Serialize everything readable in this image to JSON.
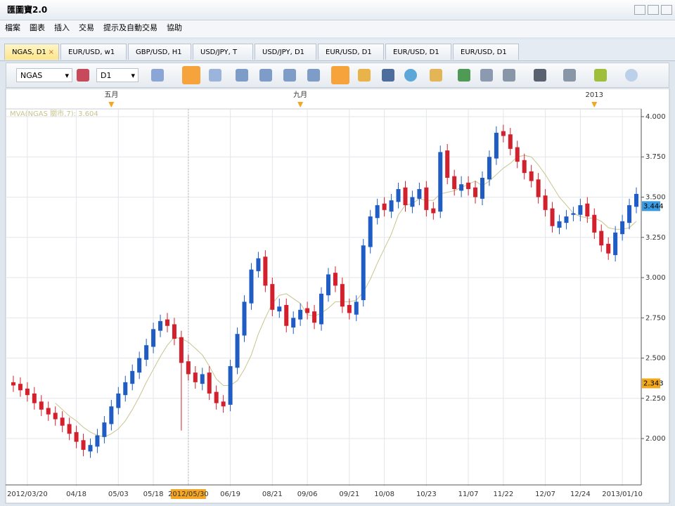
{
  "window": {
    "title": "匯圖寶2.0"
  },
  "menu": [
    "檔案",
    "圖表",
    "插入",
    "交易",
    "提示及自動交易",
    "協助"
  ],
  "tabs": [
    "NGAS, D1",
    "EUR/USD, w1",
    "GBP/USD, H1",
    "USD/JPY, T",
    "USD/JPY, D1",
    "EUR/USD, D1",
    "EUR/USD, D1",
    "EUR/USD, D1"
  ],
  "toolbar": {
    "symbol": "NGAS",
    "timeframe": "D1"
  },
  "chart_data": {
    "type": "candlestick",
    "indicator_label": "MVA(NGAS 關市,7): 3.604",
    "month_markers": [
      {
        "label": "五月",
        "index": 14
      },
      {
        "label": "九月",
        "index": 41
      },
      {
        "label": "2013",
        "index": 83
      }
    ],
    "highlighted": "2012/05/30",
    "categories": [
      null,
      null,
      "2012/03/20",
      null,
      null,
      null,
      null,
      null,
      null,
      "04/18",
      null,
      null,
      null,
      null,
      null,
      "05/03",
      null,
      null,
      null,
      null,
      "05/18",
      null,
      null,
      null,
      null,
      "2012/05/30",
      null,
      null,
      null,
      null,
      null,
      "06/19",
      null,
      null,
      null,
      null,
      null,
      "08/21",
      null,
      null,
      null,
      null,
      "09/06",
      null,
      null,
      null,
      null,
      null,
      "09/21",
      null,
      null,
      null,
      null,
      "10/08",
      null,
      null,
      null,
      null,
      null,
      "10/23",
      null,
      null,
      null,
      null,
      null,
      "11/07",
      null,
      null,
      null,
      null,
      "11/22",
      null,
      null,
      null,
      null,
      null,
      "12/07",
      null,
      null,
      null,
      null,
      "12/24",
      null,
      null,
      null,
      null,
      null,
      "2013/01/10",
      null,
      null
    ],
    "open": [
      2.35,
      2.34,
      2.31,
      2.28,
      2.23,
      2.19,
      2.16,
      2.13,
      2.09,
      2.04,
      1.99,
      1.92,
      1.95,
      2.01,
      2.09,
      2.19,
      2.27,
      2.34,
      2.41,
      2.49,
      2.57,
      2.67,
      2.74,
      2.71,
      2.63,
      2.48,
      2.41,
      2.34,
      2.41,
      2.29,
      2.23,
      2.21,
      2.44,
      2.64,
      2.84,
      3.04,
      3.13,
      2.96,
      2.79,
      2.83,
      2.69,
      2.74,
      2.81,
      2.79,
      2.71,
      2.89,
      3.03,
      2.96,
      2.83,
      2.77,
      2.86,
      3.19,
      3.37,
      3.46,
      3.41,
      3.47,
      3.56,
      3.44,
      3.49,
      3.56,
      3.43,
      3.41,
      3.79,
      3.63,
      3.54,
      3.59,
      3.56,
      3.49,
      3.61,
      3.74,
      3.91,
      3.89,
      3.81,
      3.73,
      3.66,
      3.61,
      3.51,
      3.43,
      3.31,
      3.34,
      3.39,
      3.39,
      3.46,
      3.39,
      3.29,
      3.21,
      3.14,
      3.27,
      3.34,
      3.44
    ],
    "high": [
      2.39,
      2.38,
      2.35,
      2.32,
      2.27,
      2.23,
      2.2,
      2.17,
      2.13,
      2.08,
      2.03,
      2.0,
      2.06,
      2.14,
      2.24,
      2.32,
      2.39,
      2.46,
      2.54,
      2.62,
      2.72,
      2.77,
      2.78,
      2.75,
      2.67,
      2.52,
      2.45,
      2.44,
      2.45,
      2.33,
      2.27,
      2.49,
      2.69,
      2.89,
      3.09,
      3.16,
      3.17,
      3.0,
      2.87,
      2.87,
      2.79,
      2.84,
      2.85,
      2.83,
      2.94,
      3.06,
      3.07,
      3.0,
      2.87,
      2.89,
      3.24,
      3.42,
      3.49,
      3.5,
      3.52,
      3.59,
      3.6,
      3.54,
      3.59,
      3.6,
      3.47,
      3.82,
      3.83,
      3.67,
      3.63,
      3.63,
      3.6,
      3.66,
      3.79,
      3.94,
      3.95,
      3.93,
      3.85,
      3.77,
      3.7,
      3.65,
      3.55,
      3.47,
      3.39,
      3.42,
      3.44,
      3.49,
      3.5,
      3.43,
      3.33,
      3.25,
      3.32,
      3.39,
      3.49,
      3.56
    ],
    "low": [
      2.29,
      2.26,
      2.23,
      2.18,
      2.14,
      2.11,
      2.08,
      2.04,
      1.99,
      1.94,
      1.89,
      1.88,
      1.91,
      1.97,
      2.05,
      2.15,
      2.23,
      2.3,
      2.37,
      2.45,
      2.53,
      2.63,
      2.66,
      2.58,
      2.05,
      2.36,
      2.31,
      2.3,
      2.24,
      2.18,
      2.16,
      2.17,
      2.4,
      2.6,
      2.8,
      3.0,
      2.91,
      2.76,
      2.75,
      2.66,
      2.65,
      2.7,
      2.74,
      2.68,
      2.67,
      2.85,
      2.91,
      2.78,
      2.74,
      2.73,
      2.82,
      3.15,
      3.33,
      3.38,
      3.37,
      3.43,
      3.41,
      3.4,
      3.45,
      3.38,
      3.36,
      3.37,
      3.58,
      3.51,
      3.5,
      3.51,
      3.46,
      3.45,
      3.57,
      3.7,
      3.84,
      3.76,
      3.68,
      3.61,
      3.56,
      3.46,
      3.38,
      3.28,
      3.27,
      3.3,
      3.35,
      3.35,
      3.34,
      3.24,
      3.16,
      3.11,
      3.1,
      3.23,
      3.3,
      3.4
    ],
    "close": [
      2.33,
      2.3,
      2.27,
      2.22,
      2.18,
      2.15,
      2.12,
      2.08,
      2.03,
      1.98,
      1.93,
      1.96,
      2.02,
      2.1,
      2.2,
      2.28,
      2.35,
      2.42,
      2.5,
      2.58,
      2.68,
      2.73,
      2.7,
      2.62,
      2.47,
      2.4,
      2.35,
      2.4,
      2.28,
      2.22,
      2.2,
      2.45,
      2.65,
      2.85,
      3.05,
      3.12,
      2.95,
      2.8,
      2.82,
      2.7,
      2.75,
      2.8,
      2.78,
      2.72,
      2.9,
      3.02,
      2.95,
      2.82,
      2.78,
      2.85,
      3.2,
      3.38,
      3.45,
      3.42,
      3.48,
      3.55,
      3.45,
      3.5,
      3.55,
      3.42,
      3.4,
      3.78,
      3.62,
      3.55,
      3.58,
      3.55,
      3.5,
      3.62,
      3.75,
      3.9,
      3.88,
      3.8,
      3.72,
      3.65,
      3.6,
      3.5,
      3.42,
      3.32,
      3.35,
      3.38,
      3.4,
      3.45,
      3.38,
      3.28,
      3.2,
      3.15,
      3.28,
      3.35,
      3.45,
      3.52
    ],
    "ma": [
      null,
      null,
      null,
      null,
      null,
      null,
      2.22,
      2.18,
      2.14,
      2.11,
      2.07,
      2.04,
      2.02,
      2.01,
      2.03,
      2.06,
      2.11,
      2.18,
      2.26,
      2.35,
      2.43,
      2.51,
      2.58,
      2.63,
      2.62,
      2.6,
      2.56,
      2.52,
      2.45,
      2.37,
      2.33,
      2.33,
      2.36,
      2.43,
      2.52,
      2.65,
      2.75,
      2.84,
      2.89,
      2.9,
      2.87,
      2.84,
      2.77,
      2.76,
      2.78,
      2.81,
      2.85,
      2.85,
      2.85,
      2.86,
      2.91,
      2.99,
      3.09,
      3.18,
      3.27,
      3.39,
      3.45,
      3.46,
      3.49,
      3.48,
      3.48,
      3.52,
      3.53,
      3.54,
      3.56,
      3.58,
      3.6,
      3.57,
      3.6,
      3.64,
      3.68,
      3.71,
      3.75,
      3.76,
      3.75,
      3.7,
      3.64,
      3.57,
      3.5,
      3.45,
      3.4,
      3.38,
      3.37,
      3.37,
      3.35,
      3.31,
      3.3,
      3.3,
      3.31,
      3.35
    ],
    "up_color": "#1f5cc4",
    "down_color": "#d2202c",
    "ma_color": "#c9c48e",
    "ylim": [
      1.712,
      4.048
    ],
    "yticks": [
      {
        "value": 2,
        "label": "2.000"
      },
      {
        "value": 2.25,
        "label": "2.250"
      },
      {
        "value": 2.5,
        "label": "2.500"
      },
      {
        "value": 2.75,
        "label": "2.750"
      },
      {
        "value": 3,
        "label": "3.000"
      },
      {
        "value": 3.25,
        "label": "3.250"
      },
      {
        "value": 3.5,
        "label": "3.500"
      },
      {
        "value": 3.75,
        "label": "3.750"
      },
      {
        "value": 4,
        "label": "4.000"
      }
    ],
    "price_tags": [
      {
        "value": 3.444,
        "color": "#3a9be0"
      },
      {
        "value": 2.343,
        "color": "#f2a81c"
      }
    ],
    "grid": true
  }
}
